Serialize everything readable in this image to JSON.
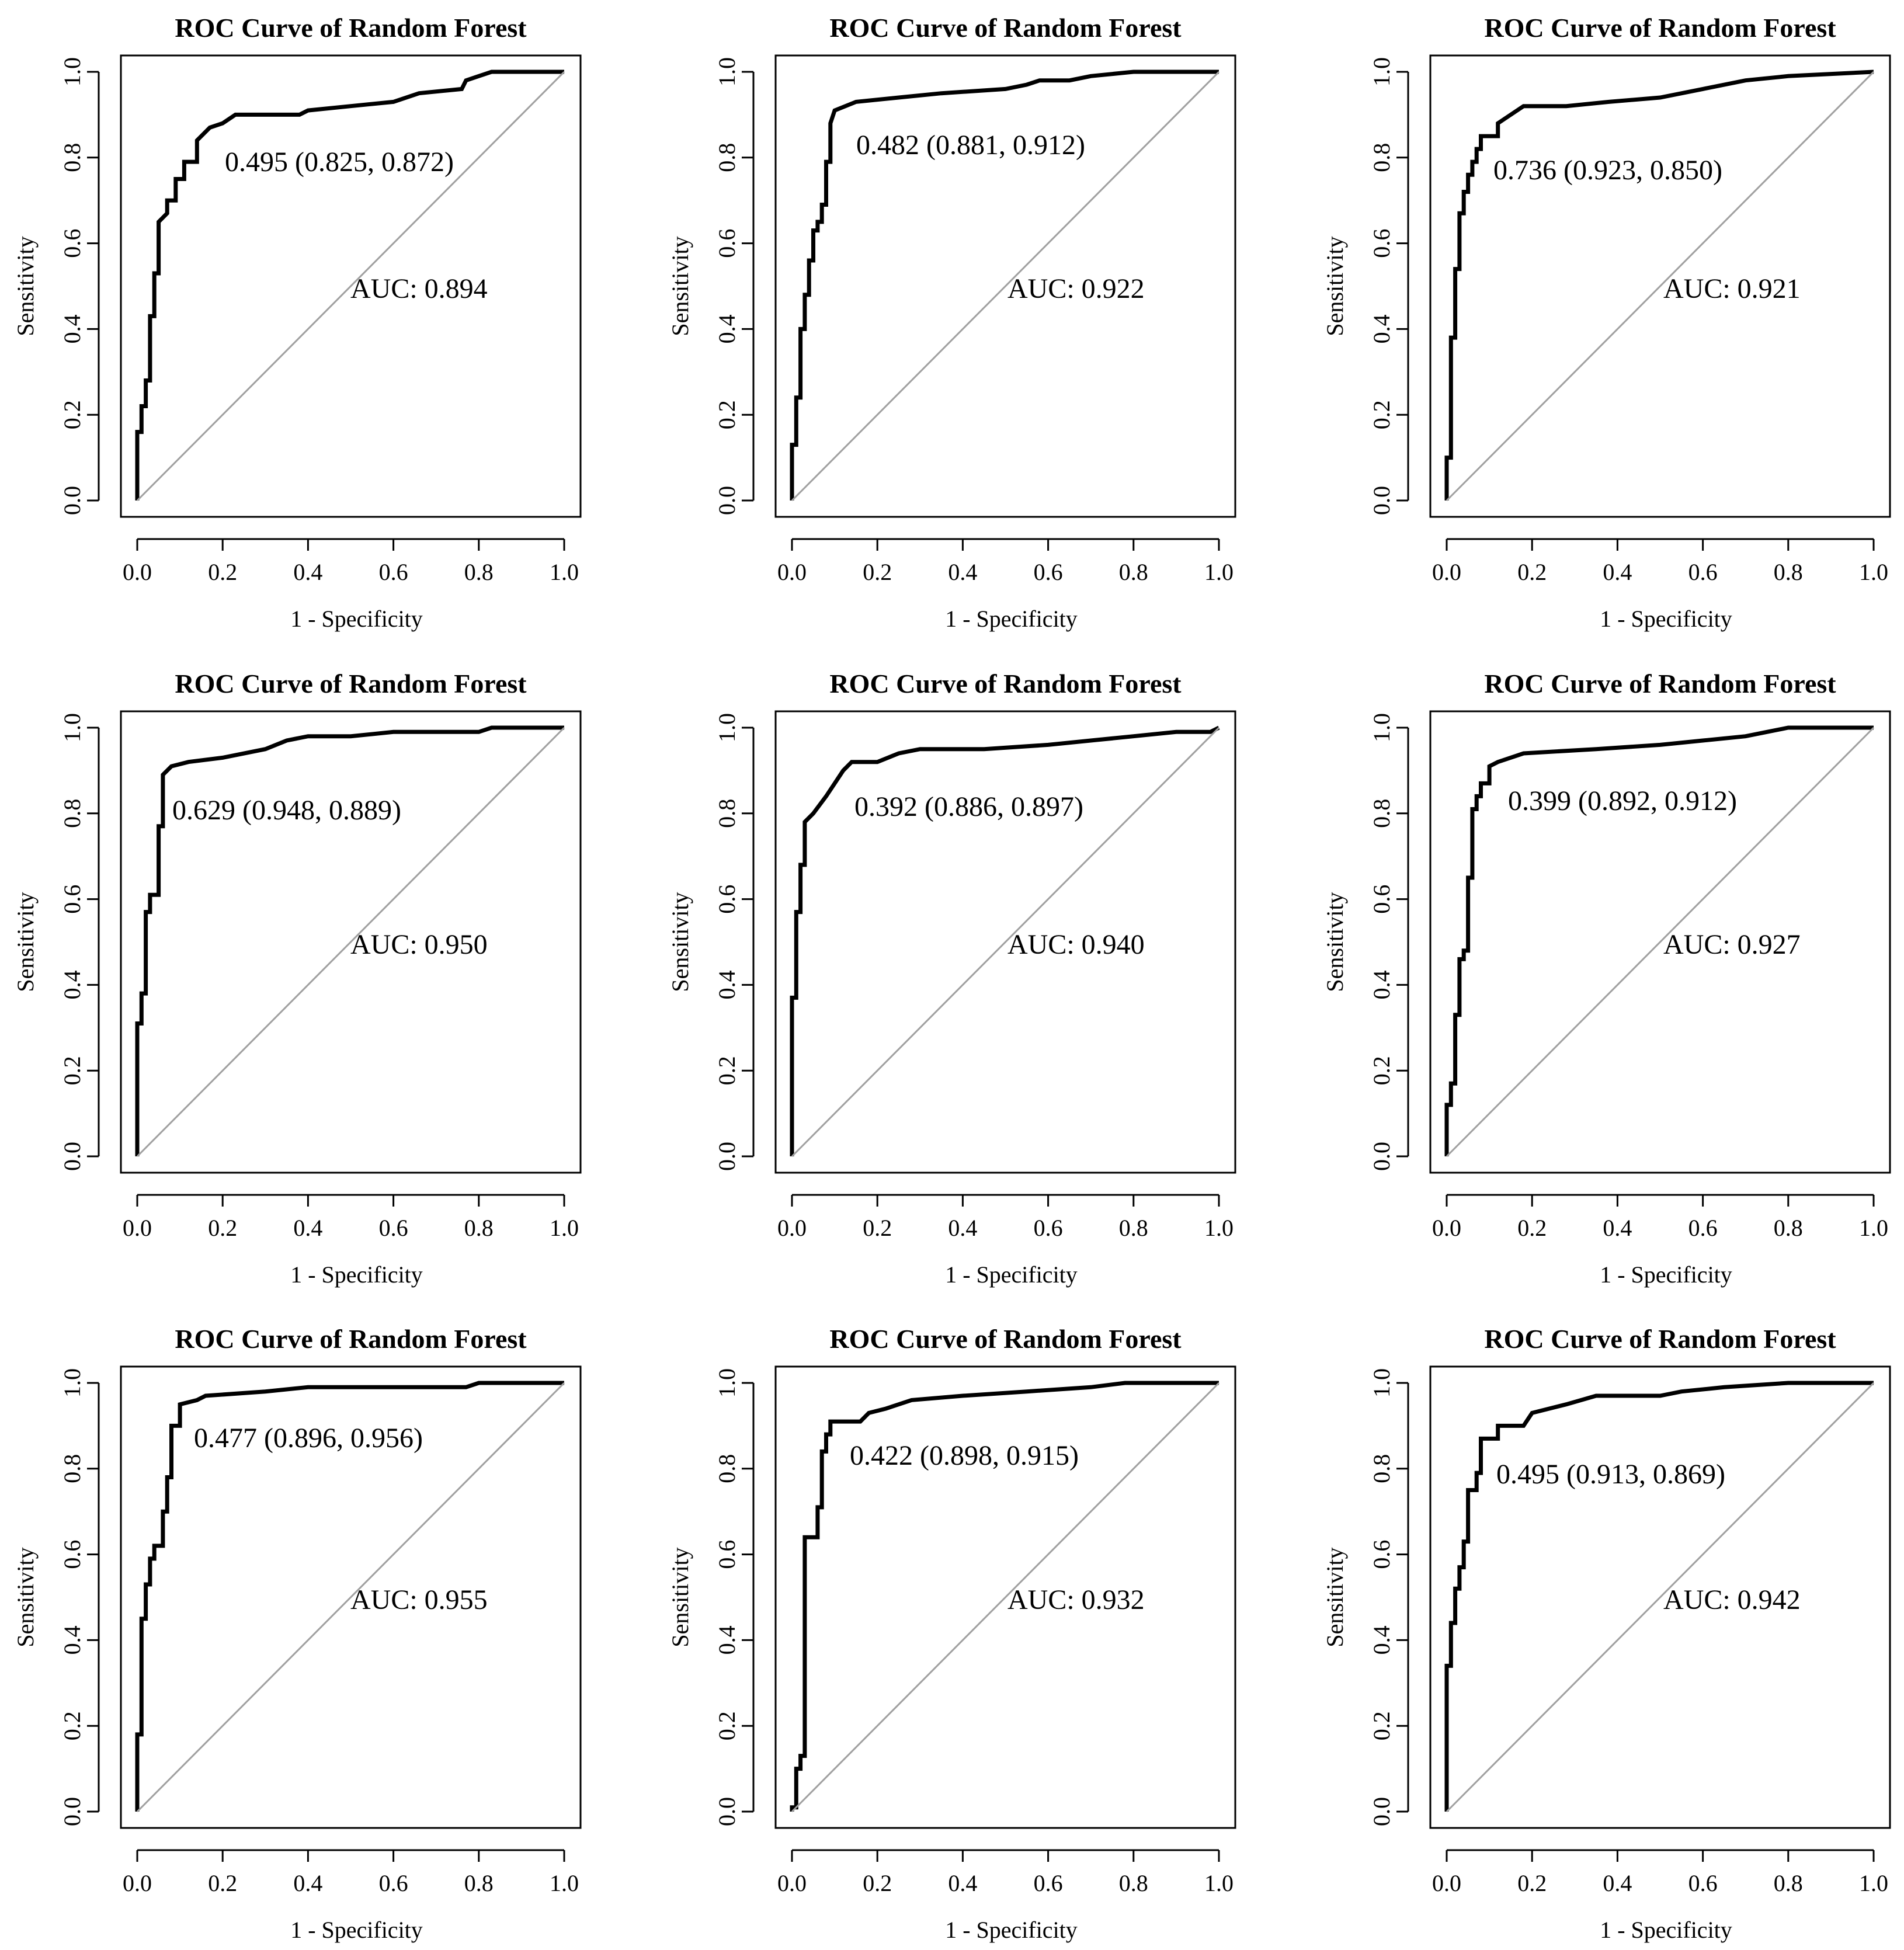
{
  "chart_data": [
    {
      "type": "line",
      "title": "ROC Curve of Random Forest",
      "xlabel": "1 - Specificity",
      "ylabel": "Sensitivity",
      "xlim": [
        0,
        1
      ],
      "ylim": [
        0,
        1
      ],
      "x_ticks": [
        "0.0",
        "0.2",
        "0.4",
        "0.6",
        "0.8",
        "1.0"
      ],
      "y_ticks": [
        "0.0",
        "0.2",
        "0.4",
        "0.6",
        "0.8",
        "1.0"
      ],
      "threshold_label": "0.495 (0.825, 0.872)",
      "auc_label": "AUC: 0.894",
      "series": [
        {
          "name": "ROC",
          "x": [
            0,
            0,
            0.01,
            0.01,
            0.02,
            0.02,
            0.03,
            0.03,
            0.04,
            0.04,
            0.05,
            0.05,
            0.07,
            0.07,
            0.09,
            0.09,
            0.11,
            0.11,
            0.14,
            0.14,
            0.17,
            0.2,
            0.23,
            0.38,
            0.4,
            0.5,
            0.6,
            0.66,
            0.76,
            0.77,
            0.8,
            0.83,
            1
          ],
          "y": [
            0,
            0.16,
            0.16,
            0.22,
            0.22,
            0.28,
            0.28,
            0.43,
            0.43,
            0.53,
            0.53,
            0.65,
            0.67,
            0.7,
            0.7,
            0.75,
            0.75,
            0.79,
            0.79,
            0.84,
            0.87,
            0.88,
            0.9,
            0.9,
            0.91,
            0.92,
            0.93,
            0.95,
            0.96,
            0.98,
            0.99,
            1,
            1
          ]
        },
        {
          "name": "reference",
          "x": [
            0,
            1
          ],
          "y": [
            0,
            1
          ]
        }
      ]
    },
    {
      "type": "line",
      "title": "ROC Curve of Random Forest",
      "xlabel": "1 - Specificity",
      "ylabel": "Sensitivity",
      "xlim": [
        0,
        1
      ],
      "ylim": [
        0,
        1
      ],
      "x_ticks": [
        "0.0",
        "0.2",
        "0.4",
        "0.6",
        "0.8",
        "1.0"
      ],
      "y_ticks": [
        "0.0",
        "0.2",
        "0.4",
        "0.6",
        "0.8",
        "1.0"
      ],
      "threshold_label": "0.482 (0.881, 0.912)",
      "auc_label": "AUC: 0.922",
      "series": [
        {
          "name": "ROC",
          "x": [
            0,
            0,
            0.01,
            0.01,
            0.02,
            0.02,
            0.03,
            0.03,
            0.04,
            0.04,
            0.05,
            0.05,
            0.06,
            0.06,
            0.07,
            0.07,
            0.08,
            0.08,
            0.09,
            0.09,
            0.1,
            0.15,
            0.25,
            0.35,
            0.5,
            0.55,
            0.58,
            0.65,
            0.7,
            0.8,
            1
          ],
          "y": [
            0,
            0.13,
            0.13,
            0.24,
            0.24,
            0.4,
            0.4,
            0.48,
            0.48,
            0.56,
            0.56,
            0.63,
            0.63,
            0.65,
            0.65,
            0.69,
            0.69,
            0.79,
            0.79,
            0.88,
            0.91,
            0.93,
            0.94,
            0.95,
            0.96,
            0.97,
            0.98,
            0.98,
            0.99,
            1,
            1
          ]
        },
        {
          "name": "reference",
          "x": [
            0,
            1
          ],
          "y": [
            0,
            1
          ]
        }
      ]
    },
    {
      "type": "line",
      "title": "ROC Curve of Random Forest",
      "xlabel": "1 - Specificity",
      "ylabel": "Sensitivity",
      "xlim": [
        0,
        1
      ],
      "ylim": [
        0,
        1
      ],
      "x_ticks": [
        "0.0",
        "0.2",
        "0.4",
        "0.6",
        "0.8",
        "1.0"
      ],
      "y_ticks": [
        "0.0",
        "0.2",
        "0.4",
        "0.6",
        "0.8",
        "1.0"
      ],
      "threshold_label": "0.736 (0.923, 0.850)",
      "auc_label": "AUC: 0.921",
      "series": [
        {
          "name": "ROC",
          "x": [
            0,
            0,
            0.01,
            0.01,
            0.02,
            0.02,
            0.03,
            0.03,
            0.04,
            0.04,
            0.05,
            0.05,
            0.06,
            0.06,
            0.07,
            0.07,
            0.08,
            0.08,
            0.12,
            0.12,
            0.15,
            0.18,
            0.28,
            0.38,
            0.5,
            0.6,
            0.7,
            0.8,
            1
          ],
          "y": [
            0,
            0.1,
            0.1,
            0.38,
            0.38,
            0.54,
            0.54,
            0.67,
            0.67,
            0.72,
            0.72,
            0.76,
            0.76,
            0.79,
            0.79,
            0.82,
            0.82,
            0.85,
            0.85,
            0.88,
            0.9,
            0.92,
            0.92,
            0.93,
            0.94,
            0.96,
            0.98,
            0.99,
            1
          ]
        },
        {
          "name": "reference",
          "x": [
            0,
            1
          ],
          "y": [
            0,
            1
          ]
        }
      ]
    },
    {
      "type": "line",
      "title": "ROC Curve of Random Forest",
      "xlabel": "1 - Specificity",
      "ylabel": "Sensitivity",
      "xlim": [
        0,
        1
      ],
      "ylim": [
        0,
        1
      ],
      "x_ticks": [
        "0.0",
        "0.2",
        "0.4",
        "0.6",
        "0.8",
        "1.0"
      ],
      "y_ticks": [
        "0.0",
        "0.2",
        "0.4",
        "0.6",
        "0.8",
        "1.0"
      ],
      "threshold_label": "0.629 (0.948, 0.889)",
      "auc_label": "AUC: 0.950",
      "series": [
        {
          "name": "ROC",
          "x": [
            0,
            0,
            0.01,
            0.01,
            0.02,
            0.02,
            0.03,
            0.03,
            0.05,
            0.05,
            0.06,
            0.06,
            0.08,
            0.12,
            0.2,
            0.3,
            0.35,
            0.4,
            0.5,
            0.6,
            0.8,
            0.83,
            1
          ],
          "y": [
            0,
            0.31,
            0.31,
            0.38,
            0.38,
            0.57,
            0.57,
            0.61,
            0.61,
            0.77,
            0.77,
            0.89,
            0.91,
            0.92,
            0.93,
            0.95,
            0.97,
            0.98,
            0.98,
            0.99,
            0.99,
            1,
            1
          ]
        },
        {
          "name": "reference",
          "x": [
            0,
            1
          ],
          "y": [
            0,
            1
          ]
        }
      ]
    },
    {
      "type": "line",
      "title": "ROC Curve of Random Forest",
      "xlabel": "1 - Specificity",
      "ylabel": "Sensitivity",
      "xlim": [
        0,
        1
      ],
      "ylim": [
        0,
        1
      ],
      "x_ticks": [
        "0.0",
        "0.2",
        "0.4",
        "0.6",
        "0.8",
        "1.0"
      ],
      "y_ticks": [
        "0.0",
        "0.2",
        "0.4",
        "0.6",
        "0.8",
        "1.0"
      ],
      "threshold_label": "0.392 (0.886, 0.897)",
      "auc_label": "AUC: 0.940",
      "series": [
        {
          "name": "ROC",
          "x": [
            0,
            0,
            0.01,
            0.01,
            0.02,
            0.02,
            0.03,
            0.03,
            0.05,
            0.08,
            0.1,
            0.12,
            0.14,
            0.2,
            0.25,
            0.3,
            0.45,
            0.6,
            0.7,
            0.8,
            0.9,
            0.98,
            1
          ],
          "y": [
            0,
            0.37,
            0.37,
            0.57,
            0.57,
            0.68,
            0.68,
            0.78,
            0.8,
            0.84,
            0.87,
            0.9,
            0.92,
            0.92,
            0.94,
            0.95,
            0.95,
            0.96,
            0.97,
            0.98,
            0.99,
            0.99,
            1
          ]
        },
        {
          "name": "reference",
          "x": [
            0,
            1
          ],
          "y": [
            0,
            1
          ]
        }
      ]
    },
    {
      "type": "line",
      "title": "ROC Curve of Random Forest",
      "xlabel": "1 - Specificity",
      "ylabel": "Sensitivity",
      "xlim": [
        0,
        1
      ],
      "ylim": [
        0,
        1
      ],
      "x_ticks": [
        "0.0",
        "0.2",
        "0.4",
        "0.6",
        "0.8",
        "1.0"
      ],
      "y_ticks": [
        "0.0",
        "0.2",
        "0.4",
        "0.6",
        "0.8",
        "1.0"
      ],
      "threshold_label": "0.399 (0.892, 0.912)",
      "auc_label": "AUC: 0.927",
      "series": [
        {
          "name": "ROC",
          "x": [
            0,
            0,
            0.01,
            0.01,
            0.02,
            0.02,
            0.03,
            0.03,
            0.04,
            0.04,
            0.05,
            0.05,
            0.06,
            0.06,
            0.07,
            0.07,
            0.08,
            0.08,
            0.1,
            0.1,
            0.12,
            0.18,
            0.35,
            0.5,
            0.6,
            0.7,
            0.75,
            0.8,
            1
          ],
          "y": [
            0,
            0.12,
            0.12,
            0.17,
            0.17,
            0.33,
            0.33,
            0.46,
            0.46,
            0.48,
            0.48,
            0.65,
            0.65,
            0.81,
            0.81,
            0.84,
            0.84,
            0.87,
            0.87,
            0.91,
            0.92,
            0.94,
            0.95,
            0.96,
            0.97,
            0.98,
            0.99,
            1,
            1
          ]
        },
        {
          "name": "reference",
          "x": [
            0,
            1
          ],
          "y": [
            0,
            1
          ]
        }
      ]
    },
    {
      "type": "line",
      "title": "ROC Curve of Random Forest",
      "xlabel": "1 - Specificity",
      "ylabel": "Sensitivity",
      "xlim": [
        0,
        1
      ],
      "ylim": [
        0,
        1
      ],
      "x_ticks": [
        "0.0",
        "0.2",
        "0.4",
        "0.6",
        "0.8",
        "1.0"
      ],
      "y_ticks": [
        "0.0",
        "0.2",
        "0.4",
        "0.6",
        "0.8",
        "1.0"
      ],
      "threshold_label": "0.477 (0.896, 0.956)",
      "auc_label": "AUC: 0.955",
      "series": [
        {
          "name": "ROC",
          "x": [
            0,
            0,
            0.01,
            0.01,
            0.02,
            0.02,
            0.03,
            0.03,
            0.04,
            0.04,
            0.06,
            0.06,
            0.07,
            0.07,
            0.08,
            0.08,
            0.1,
            0.1,
            0.14,
            0.16,
            0.3,
            0.4,
            0.77,
            0.8,
            1
          ],
          "y": [
            0,
            0.18,
            0.18,
            0.45,
            0.45,
            0.53,
            0.53,
            0.59,
            0.59,
            0.62,
            0.62,
            0.7,
            0.7,
            0.78,
            0.78,
            0.9,
            0.9,
            0.95,
            0.96,
            0.97,
            0.98,
            0.99,
            0.99,
            1,
            1
          ]
        },
        {
          "name": "reference",
          "x": [
            0,
            1
          ],
          "y": [
            0,
            1
          ]
        }
      ]
    },
    {
      "type": "line",
      "title": "ROC Curve of Random Forest",
      "xlabel": "1 - Specificity",
      "ylabel": "Sensitivity",
      "xlim": [
        0,
        1
      ],
      "ylim": [
        0,
        1
      ],
      "x_ticks": [
        "0.0",
        "0.2",
        "0.4",
        "0.6",
        "0.8",
        "1.0"
      ],
      "y_ticks": [
        "0.0",
        "0.2",
        "0.4",
        "0.6",
        "0.8",
        "1.0"
      ],
      "threshold_label": "0.422 (0.898, 0.915)",
      "auc_label": "AUC: 0.932",
      "series": [
        {
          "name": "ROC",
          "x": [
            0,
            0,
            0.01,
            0.01,
            0.02,
            0.02,
            0.03,
            0.03,
            0.06,
            0.06,
            0.07,
            0.07,
            0.08,
            0.08,
            0.09,
            0.09,
            0.16,
            0.18,
            0.22,
            0.28,
            0.4,
            0.55,
            0.7,
            0.78,
            1
          ],
          "y": [
            0,
            0.01,
            0.01,
            0.1,
            0.1,
            0.13,
            0.13,
            0.64,
            0.64,
            0.71,
            0.71,
            0.84,
            0.84,
            0.88,
            0.88,
            0.91,
            0.91,
            0.93,
            0.94,
            0.96,
            0.97,
            0.98,
            0.99,
            1,
            1
          ]
        },
        {
          "name": "reference",
          "x": [
            0,
            1
          ],
          "y": [
            0,
            1
          ]
        }
      ]
    },
    {
      "type": "line",
      "title": "ROC Curve of Random Forest",
      "xlabel": "1 - Specificity",
      "ylabel": "Sensitivity",
      "xlim": [
        0,
        1
      ],
      "ylim": [
        0,
        1
      ],
      "x_ticks": [
        "0.0",
        "0.2",
        "0.4",
        "0.6",
        "0.8",
        "1.0"
      ],
      "y_ticks": [
        "0.0",
        "0.2",
        "0.4",
        "0.6",
        "0.8",
        "1.0"
      ],
      "threshold_label": "0.495 (0.913, 0.869)",
      "auc_label": "AUC: 0.942",
      "series": [
        {
          "name": "ROC",
          "x": [
            0,
            0,
            0.01,
            0.01,
            0.02,
            0.02,
            0.03,
            0.03,
            0.04,
            0.04,
            0.05,
            0.05,
            0.07,
            0.07,
            0.08,
            0.08,
            0.12,
            0.12,
            0.18,
            0.2,
            0.28,
            0.35,
            0.5,
            0.55,
            0.65,
            0.8,
            1
          ],
          "y": [
            0,
            0.34,
            0.34,
            0.44,
            0.44,
            0.52,
            0.52,
            0.57,
            0.57,
            0.63,
            0.63,
            0.75,
            0.75,
            0.79,
            0.79,
            0.87,
            0.87,
            0.9,
            0.9,
            0.93,
            0.95,
            0.97,
            0.97,
            0.98,
            0.99,
            1,
            1
          ]
        },
        {
          "name": "reference",
          "x": [
            0,
            1
          ],
          "y": [
            0,
            1
          ]
        }
      ]
    }
  ]
}
